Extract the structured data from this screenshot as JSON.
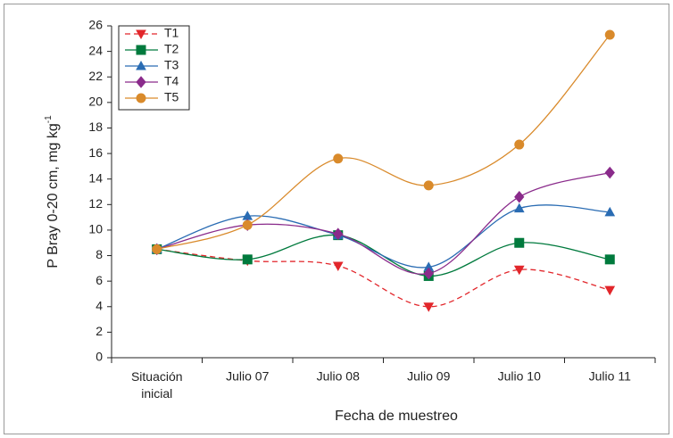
{
  "chart_data": {
    "type": "line",
    "xlabel": "Fecha de muestreo",
    "ylabel": "P Bray 0-20 cm, mg kg",
    "ylabel_superscript": "-1",
    "categories": [
      "Situación inicial",
      "Julio 07",
      "Julio 08",
      "Julio 09",
      "Julio 10",
      "Julio 11"
    ],
    "ylim": [
      0,
      26
    ],
    "yticks": [
      0,
      2,
      4,
      6,
      8,
      10,
      12,
      14,
      16,
      18,
      20,
      22,
      24,
      26
    ],
    "legend": "upper left",
    "series": [
      {
        "name": "T1",
        "color": "#e2262b",
        "marker": "triangle-down",
        "linestyle": "dashed",
        "values": [
          8.5,
          7.6,
          7.2,
          4.0,
          6.9,
          5.3
        ]
      },
      {
        "name": "T2",
        "color": "#007a3d",
        "marker": "square",
        "linestyle": "solid",
        "values": [
          8.5,
          7.7,
          9.6,
          6.4,
          9.0,
          7.7
        ]
      },
      {
        "name": "T3",
        "color": "#2a6cb3",
        "marker": "triangle-up",
        "linestyle": "solid",
        "values": [
          8.5,
          11.1,
          9.6,
          7.1,
          11.7,
          11.4
        ]
      },
      {
        "name": "T4",
        "color": "#8a2b8b",
        "marker": "diamond",
        "linestyle": "solid",
        "values": [
          8.5,
          10.4,
          9.7,
          6.6,
          12.6,
          14.5
        ]
      },
      {
        "name": "T5",
        "color": "#d98a2b",
        "marker": "circle",
        "linestyle": "solid",
        "values": [
          8.5,
          10.4,
          15.6,
          13.5,
          16.7,
          25.3
        ]
      }
    ]
  }
}
